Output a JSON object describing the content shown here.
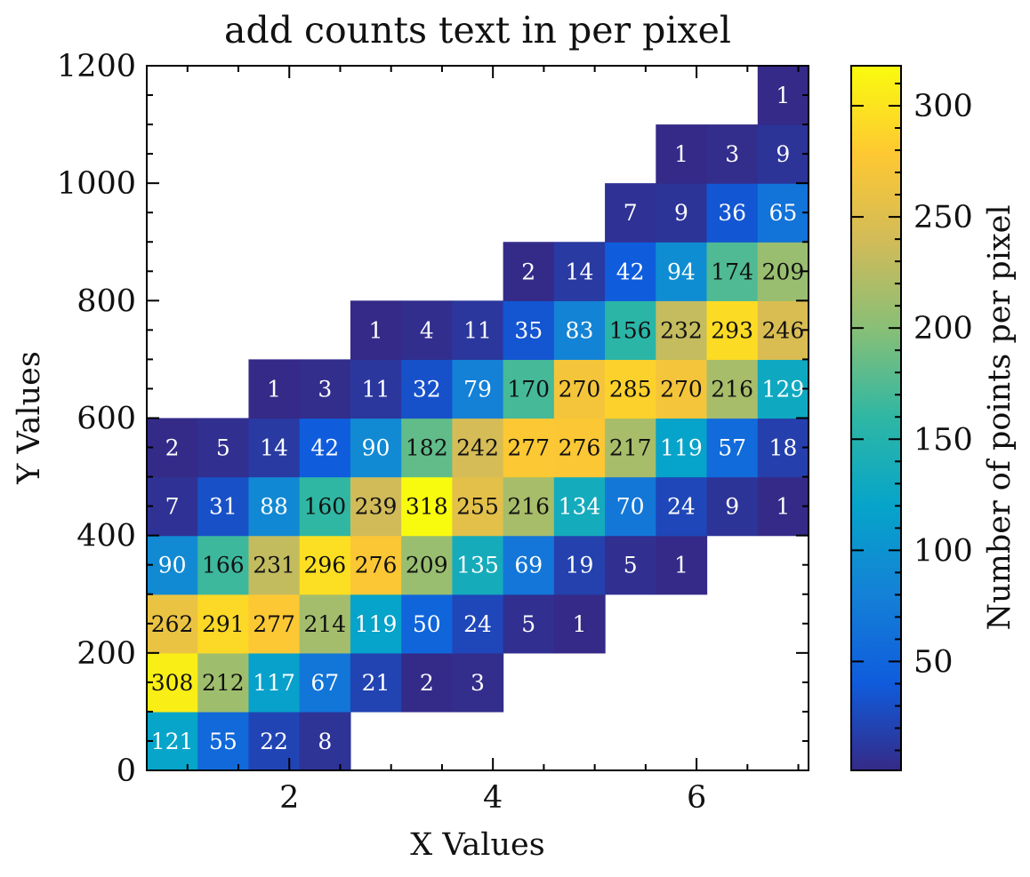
{
  "chart_data": {
    "type": "heatmap",
    "title": "add counts text in per pixel",
    "xlabel": "X Values",
    "ylabel": "Y Values",
    "xlim": [
      0.6,
      7.1
    ],
    "ylim": [
      0,
      1200
    ],
    "x_ticks": [
      2,
      4,
      6
    ],
    "y_ticks": [
      0,
      200,
      400,
      600,
      800,
      1000,
      1200
    ],
    "bin_width_x": 0.5,
    "bin_height_y": 100,
    "colorbar": {
      "label": "Number of points per pixel",
      "range": [
        1,
        318
      ],
      "ticks": [
        50,
        100,
        150,
        200,
        250,
        300
      ],
      "colormap": [
        "#352a87",
        "#0f5cdd",
        "#1481d6",
        "#06a4ca",
        "#2eb7a4",
        "#87bf77",
        "#d1bb59",
        "#fec832",
        "#f9fb0e"
      ]
    },
    "cells": [
      {
        "x": 0.85,
        "y": 50,
        "count": 121
      },
      {
        "x": 1.35,
        "y": 50,
        "count": 55
      },
      {
        "x": 1.85,
        "y": 50,
        "count": 22
      },
      {
        "x": 2.35,
        "y": 50,
        "count": 8
      },
      {
        "x": 0.85,
        "y": 150,
        "count": 308
      },
      {
        "x": 1.35,
        "y": 150,
        "count": 212
      },
      {
        "x": 1.85,
        "y": 150,
        "count": 117
      },
      {
        "x": 2.35,
        "y": 150,
        "count": 67
      },
      {
        "x": 2.85,
        "y": 150,
        "count": 21
      },
      {
        "x": 3.35,
        "y": 150,
        "count": 2
      },
      {
        "x": 3.85,
        "y": 150,
        "count": 3
      },
      {
        "x": 0.85,
        "y": 250,
        "count": 262
      },
      {
        "x": 1.35,
        "y": 250,
        "count": 291
      },
      {
        "x": 1.85,
        "y": 250,
        "count": 277
      },
      {
        "x": 2.35,
        "y": 250,
        "count": 214
      },
      {
        "x": 2.85,
        "y": 250,
        "count": 119
      },
      {
        "x": 3.35,
        "y": 250,
        "count": 50
      },
      {
        "x": 3.85,
        "y": 250,
        "count": 24
      },
      {
        "x": 4.35,
        "y": 250,
        "count": 5
      },
      {
        "x": 4.85,
        "y": 250,
        "count": 1
      },
      {
        "x": 0.85,
        "y": 350,
        "count": 90
      },
      {
        "x": 1.35,
        "y": 350,
        "count": 166
      },
      {
        "x": 1.85,
        "y": 350,
        "count": 231
      },
      {
        "x": 2.35,
        "y": 350,
        "count": 296
      },
      {
        "x": 2.85,
        "y": 350,
        "count": 276
      },
      {
        "x": 3.35,
        "y": 350,
        "count": 209
      },
      {
        "x": 3.85,
        "y": 350,
        "count": 135
      },
      {
        "x": 4.35,
        "y": 350,
        "count": 69
      },
      {
        "x": 4.85,
        "y": 350,
        "count": 19
      },
      {
        "x": 5.35,
        "y": 350,
        "count": 5
      },
      {
        "x": 5.85,
        "y": 350,
        "count": 1
      },
      {
        "x": 0.85,
        "y": 450,
        "count": 7
      },
      {
        "x": 1.35,
        "y": 450,
        "count": 31
      },
      {
        "x": 1.85,
        "y": 450,
        "count": 88
      },
      {
        "x": 2.35,
        "y": 450,
        "count": 160
      },
      {
        "x": 2.85,
        "y": 450,
        "count": 239
      },
      {
        "x": 3.35,
        "y": 450,
        "count": 318
      },
      {
        "x": 3.85,
        "y": 450,
        "count": 255
      },
      {
        "x": 4.35,
        "y": 450,
        "count": 216
      },
      {
        "x": 4.85,
        "y": 450,
        "count": 134
      },
      {
        "x": 5.35,
        "y": 450,
        "count": 70
      },
      {
        "x": 5.85,
        "y": 450,
        "count": 24
      },
      {
        "x": 6.35,
        "y": 450,
        "count": 9
      },
      {
        "x": 6.85,
        "y": 450,
        "count": 1
      },
      {
        "x": 0.85,
        "y": 550,
        "count": 2
      },
      {
        "x": 1.35,
        "y": 550,
        "count": 5
      },
      {
        "x": 1.85,
        "y": 550,
        "count": 14
      },
      {
        "x": 2.35,
        "y": 550,
        "count": 42
      },
      {
        "x": 2.85,
        "y": 550,
        "count": 90
      },
      {
        "x": 3.35,
        "y": 550,
        "count": 182
      },
      {
        "x": 3.85,
        "y": 550,
        "count": 242
      },
      {
        "x": 4.35,
        "y": 550,
        "count": 277
      },
      {
        "x": 4.85,
        "y": 550,
        "count": 276
      },
      {
        "x": 5.35,
        "y": 550,
        "count": 217
      },
      {
        "x": 5.85,
        "y": 550,
        "count": 119
      },
      {
        "x": 6.35,
        "y": 550,
        "count": 57
      },
      {
        "x": 6.85,
        "y": 550,
        "count": 18
      },
      {
        "x": 1.85,
        "y": 650,
        "count": 1
      },
      {
        "x": 2.35,
        "y": 650,
        "count": 3
      },
      {
        "x": 2.85,
        "y": 650,
        "count": 11
      },
      {
        "x": 3.35,
        "y": 650,
        "count": 32
      },
      {
        "x": 3.85,
        "y": 650,
        "count": 79
      },
      {
        "x": 4.35,
        "y": 650,
        "count": 170
      },
      {
        "x": 4.85,
        "y": 650,
        "count": 270
      },
      {
        "x": 5.35,
        "y": 650,
        "count": 285
      },
      {
        "x": 5.85,
        "y": 650,
        "count": 270
      },
      {
        "x": 6.35,
        "y": 650,
        "count": 216
      },
      {
        "x": 6.85,
        "y": 650,
        "count": 129
      },
      {
        "x": 2.85,
        "y": 750,
        "count": 1
      },
      {
        "x": 3.35,
        "y": 750,
        "count": 4
      },
      {
        "x": 3.85,
        "y": 750,
        "count": 11
      },
      {
        "x": 4.35,
        "y": 750,
        "count": 35
      },
      {
        "x": 4.85,
        "y": 750,
        "count": 83
      },
      {
        "x": 5.35,
        "y": 750,
        "count": 156
      },
      {
        "x": 5.85,
        "y": 750,
        "count": 232
      },
      {
        "x": 6.35,
        "y": 750,
        "count": 293
      },
      {
        "x": 6.85,
        "y": 750,
        "count": 246
      },
      {
        "x": 4.35,
        "y": 850,
        "count": 2
      },
      {
        "x": 4.85,
        "y": 850,
        "count": 14
      },
      {
        "x": 5.35,
        "y": 850,
        "count": 42
      },
      {
        "x": 5.85,
        "y": 850,
        "count": 94
      },
      {
        "x": 6.35,
        "y": 850,
        "count": 174
      },
      {
        "x": 6.85,
        "y": 850,
        "count": 209
      },
      {
        "x": 5.35,
        "y": 950,
        "count": 7
      },
      {
        "x": 5.85,
        "y": 950,
        "count": 9
      },
      {
        "x": 6.35,
        "y": 950,
        "count": 36
      },
      {
        "x": 6.85,
        "y": 950,
        "count": 65
      },
      {
        "x": 5.85,
        "y": 1050,
        "count": 1
      },
      {
        "x": 6.35,
        "y": 1050,
        "count": 3
      },
      {
        "x": 6.85,
        "y": 1050,
        "count": 9
      },
      {
        "x": 6.85,
        "y": 1150,
        "count": 1
      }
    ]
  }
}
